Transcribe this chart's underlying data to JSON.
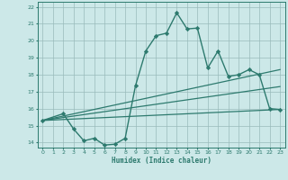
{
  "xlabel": "Humidex (Indice chaleur)",
  "ylabel": "",
  "bg_color": "#cce8e8",
  "grid_color": "#99bbbb",
  "line_color": "#2d7a6e",
  "xlim": [
    -0.5,
    23.5
  ],
  "ylim": [
    13.7,
    22.3
  ],
  "xticks": [
    0,
    1,
    2,
    3,
    4,
    5,
    6,
    7,
    8,
    9,
    10,
    11,
    12,
    13,
    14,
    15,
    16,
    17,
    18,
    19,
    20,
    21,
    22,
    23
  ],
  "yticks": [
    14,
    15,
    16,
    17,
    18,
    19,
    20,
    21,
    22
  ],
  "series": [
    {
      "x": [
        0,
        2,
        3,
        4,
        5,
        6,
        7,
        8,
        9,
        10,
        11,
        12,
        13,
        14,
        15,
        16,
        17,
        18,
        19,
        20,
        21,
        22,
        23
      ],
      "y": [
        15.3,
        15.7,
        14.8,
        14.1,
        14.25,
        13.85,
        13.9,
        14.25,
        17.35,
        19.4,
        20.3,
        20.45,
        21.65,
        20.7,
        20.75,
        18.4,
        19.4,
        17.9,
        18.0,
        18.3,
        18.0,
        16.0,
        15.95
      ],
      "marker": "D",
      "markersize": 2.2,
      "linewidth": 1.0
    },
    {
      "x": [
        0,
        23
      ],
      "y": [
        15.3,
        18.3
      ],
      "marker": null,
      "linewidth": 0.9
    },
    {
      "x": [
        0,
        23
      ],
      "y": [
        15.3,
        17.3
      ],
      "marker": null,
      "linewidth": 0.9
    },
    {
      "x": [
        0,
        23
      ],
      "y": [
        15.3,
        15.95
      ],
      "marker": null,
      "linewidth": 0.9
    }
  ]
}
